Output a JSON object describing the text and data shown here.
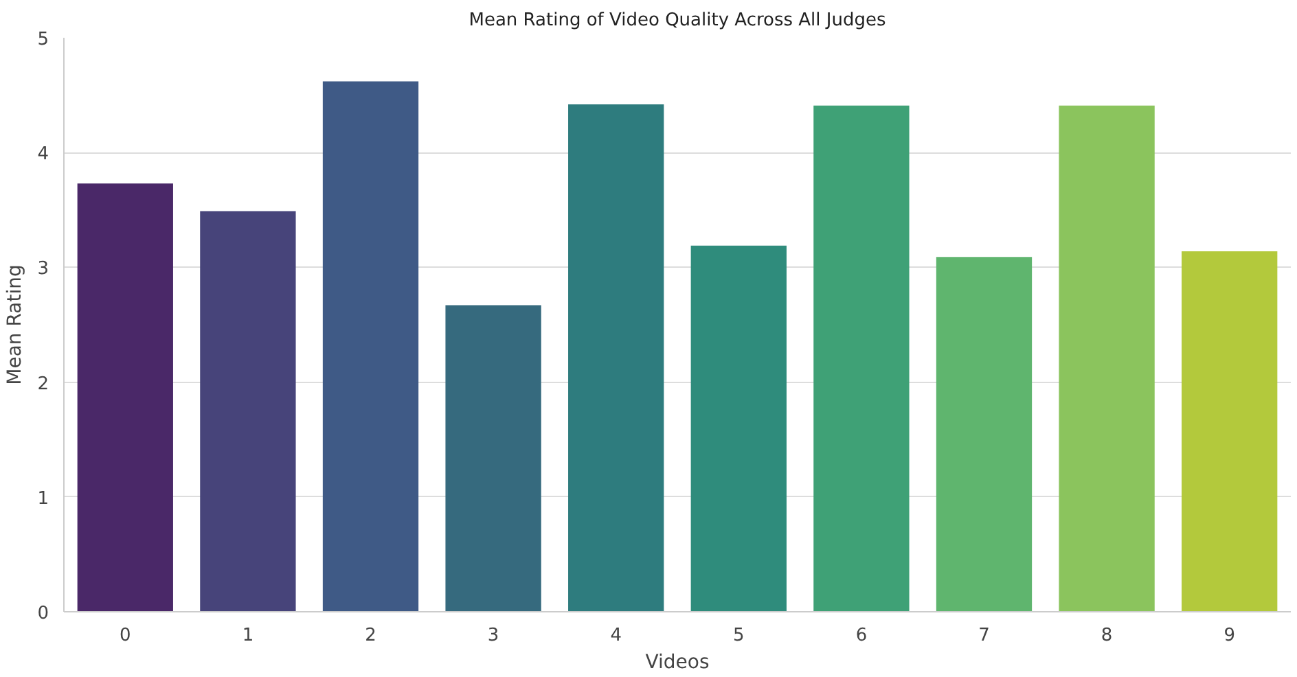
{
  "chart_data": {
    "type": "bar",
    "title": "Mean Rating of Video Quality Across All Judges",
    "xlabel": "Videos",
    "ylabel": "Mean Rating",
    "categories": [
      "0",
      "1",
      "2",
      "3",
      "4",
      "5",
      "6",
      "7",
      "8",
      "9"
    ],
    "values": [
      3.73,
      3.49,
      4.62,
      2.67,
      4.42,
      3.19,
      4.41,
      3.09,
      4.41,
      3.14
    ],
    "colors": [
      "#4a2868",
      "#47447a",
      "#3f5a86",
      "#366a7e",
      "#2e7c7e",
      "#2f8c7c",
      "#3fa176",
      "#5fb56e",
      "#8bc45d",
      "#b3c93c"
    ],
    "ylim": [
      0,
      5
    ],
    "yticks": [
      0,
      1,
      2,
      3,
      4,
      5
    ],
    "grid": "y"
  }
}
